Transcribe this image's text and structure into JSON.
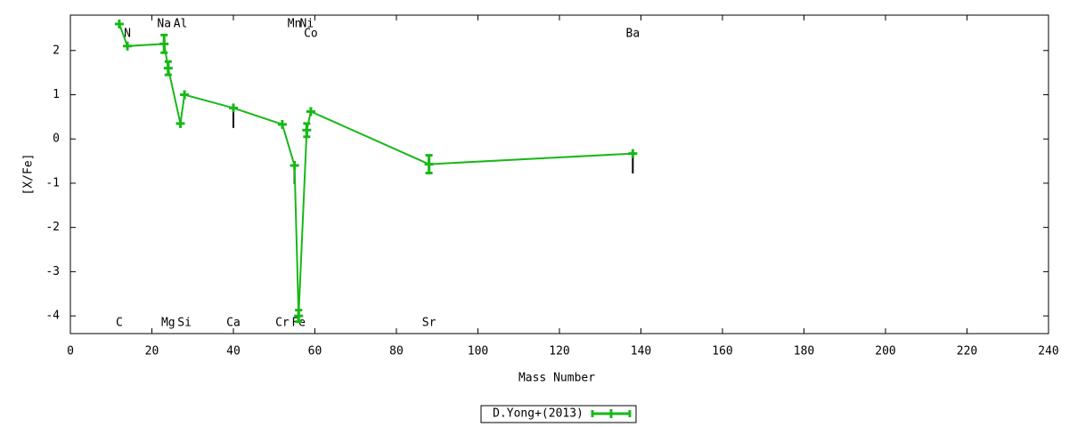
{
  "chart_data": {
    "type": "line",
    "xlabel": "Mass Number",
    "ylabel": "[X/Fe]",
    "xlim": [
      0,
      240
    ],
    "xticks": [
      0,
      20,
      40,
      60,
      80,
      100,
      120,
      140,
      160,
      180,
      200,
      220,
      240
    ],
    "ylim": [
      -4.4,
      2.8
    ],
    "yticks": [
      -4,
      -3,
      -2,
      -1,
      0,
      1,
      2
    ],
    "x": [
      12,
      14,
      23,
      24,
      27,
      28,
      40,
      52,
      55,
      56,
      58,
      59,
      88,
      138
    ],
    "labels": [
      "C",
      "N",
      "Na",
      "Mg",
      "Al",
      "Si",
      "Ca",
      "Cr",
      "Mn",
      "Fe",
      "Ni",
      "Co",
      "Sr",
      "Ba"
    ],
    "series": [
      {
        "name": "D.Yong+(2013)",
        "color": "#18b818",
        "values": [
          2.6,
          2.1,
          2.15,
          1.6,
          0.35,
          1.0,
          0.7,
          0.33,
          -0.6,
          -4.0,
          0.2,
          0.62,
          -0.57,
          -0.33
        ],
        "errors": [
          null,
          null,
          0.2,
          0.15,
          null,
          null,
          null,
          null,
          null,
          0.13,
          0.15,
          null,
          0.2,
          null
        ],
        "limits": [
          null,
          null,
          null,
          null,
          null,
          null,
          0.25,
          null,
          -1.02,
          null,
          null,
          null,
          null,
          -0.78
        ]
      }
    ],
    "legend": "bottom-center"
  }
}
